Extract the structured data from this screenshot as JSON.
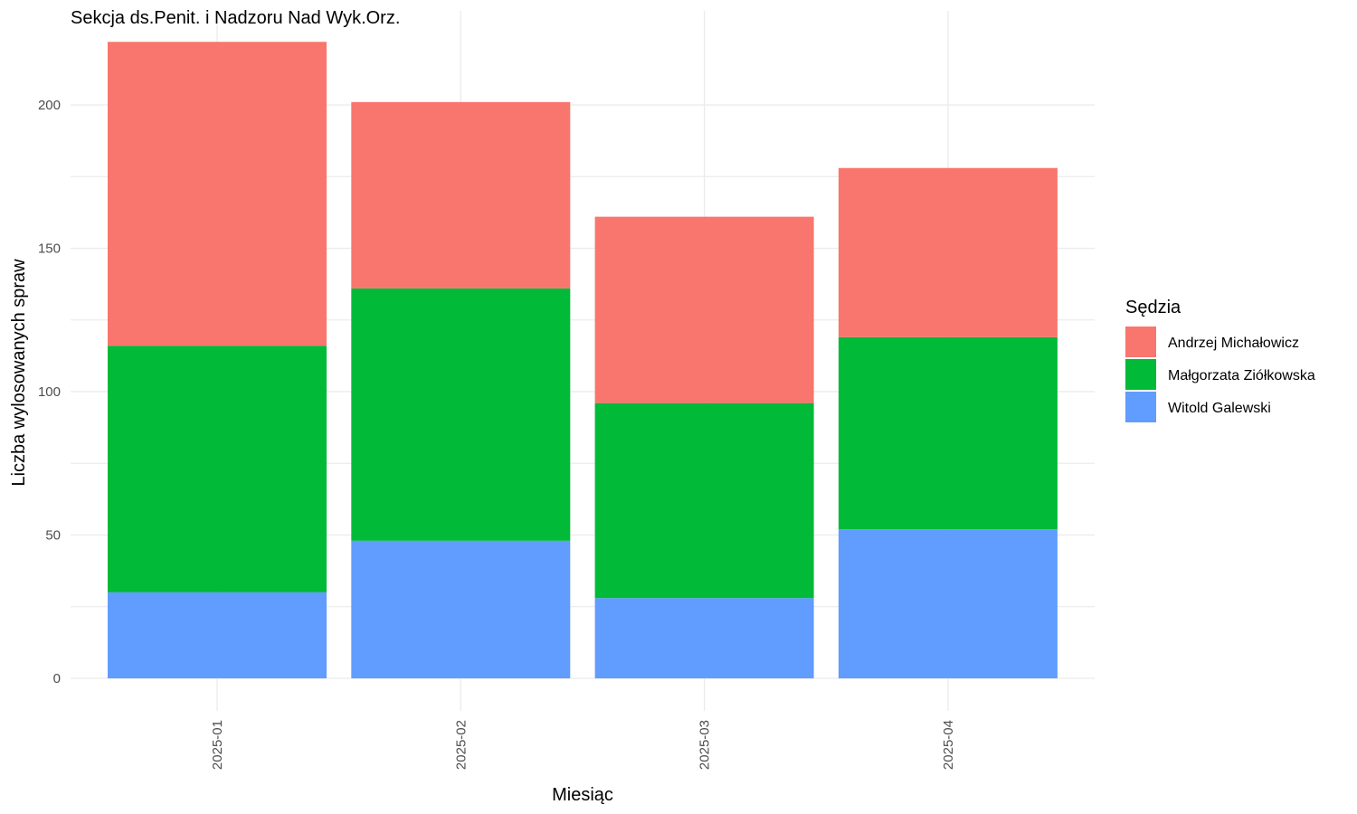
{
  "chart_data": {
    "type": "bar",
    "stacked": true,
    "title": "Sekcja ds.Penit. i Nadzoru Nad Wyk.Orz.",
    "xlabel": "Miesiąc",
    "ylabel": "Liczba wylosowanych spraw",
    "categories": [
      "2025-01",
      "2025-02",
      "2025-03",
      "2025-04"
    ],
    "ylim": [
      0,
      222
    ],
    "yticks": [
      0,
      50,
      100,
      150,
      200
    ],
    "grid": true,
    "legend": {
      "title": "Sędzia",
      "position": "right"
    },
    "series": [
      {
        "name": "Witold Galewski",
        "color": "#619CFF",
        "values": [
          30,
          48,
          28,
          52
        ]
      },
      {
        "name": "Małgorzata Ziółkowska",
        "color": "#00BA38",
        "values": [
          86,
          88,
          68,
          67
        ]
      },
      {
        "name": "Andrzej Michałowicz",
        "color": "#F8766D",
        "values": [
          106,
          65,
          65,
          59
        ]
      }
    ],
    "legend_order": [
      "Andrzej Michałowicz",
      "Małgorzata Ziółkowska",
      "Witold Galewski"
    ]
  }
}
